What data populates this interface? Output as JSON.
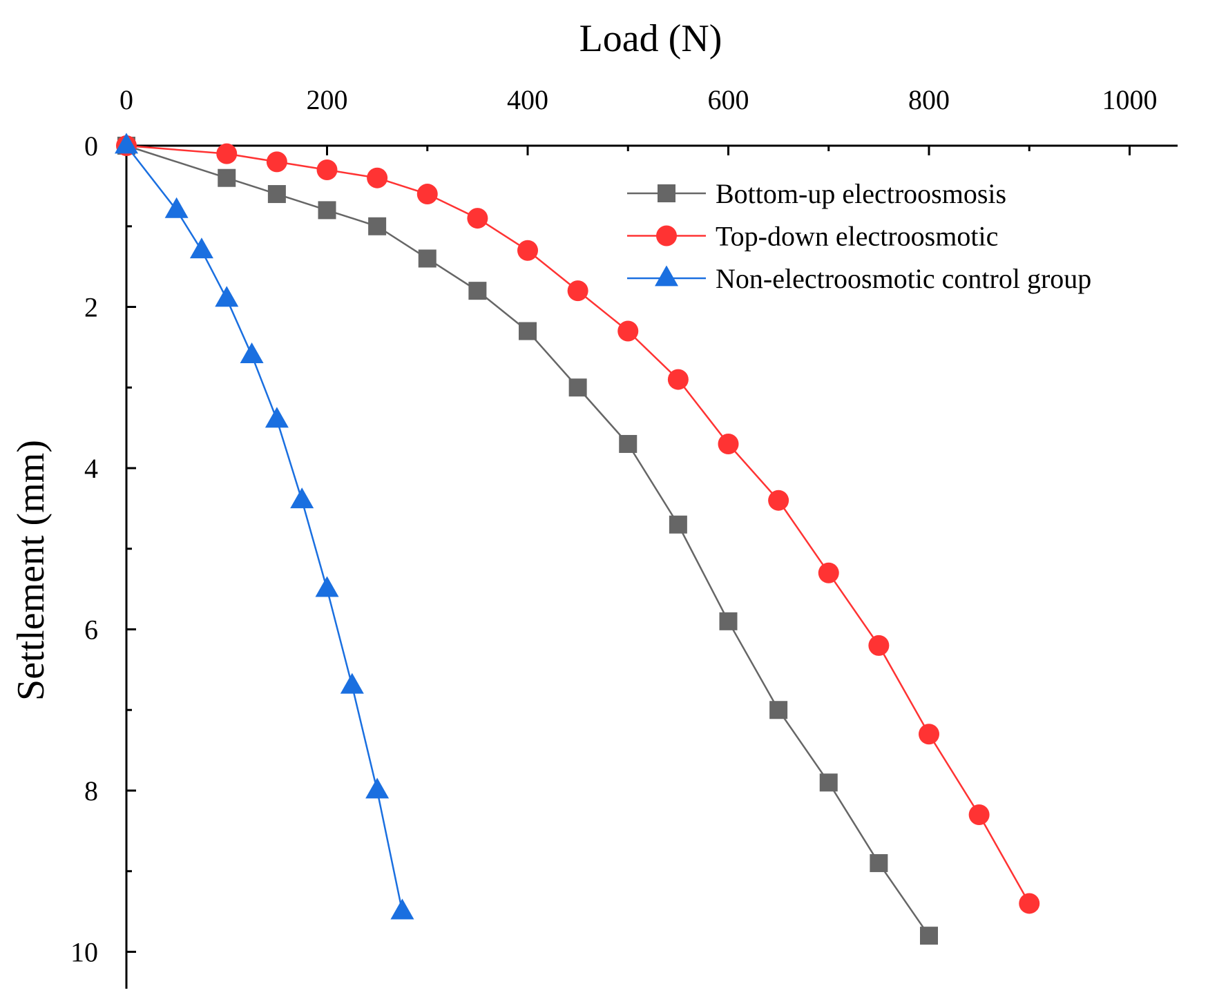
{
  "chart_data": {
    "type": "line",
    "title": "",
    "xlabel": "Load (N)",
    "ylabel": "Settlement (mm)",
    "x_axis_position": "top",
    "y_axis_inverted": true,
    "xlim": [
      0,
      1050
    ],
    "ylim": [
      0,
      10.5
    ],
    "xticks": [
      0,
      200,
      400,
      600,
      800,
      1000
    ],
    "xtick_labels": [
      "0",
      "200",
      "400",
      "600",
      "800",
      "1000"
    ],
    "yticks": [
      0,
      2,
      4,
      6,
      8,
      10
    ],
    "ytick_labels": [
      "0",
      "2",
      "4",
      "6",
      "8",
      "10"
    ],
    "grid": false,
    "legend_position": "top-right",
    "series": [
      {
        "name": "Bottom-up electroosmosis",
        "color": "#666666",
        "marker": "square",
        "x": [
          0,
          100,
          150,
          200,
          250,
          300,
          350,
          400,
          450,
          500,
          550,
          600,
          650,
          700,
          750,
          800
        ],
        "y": [
          0,
          0.4,
          0.6,
          0.8,
          1.0,
          1.4,
          1.8,
          2.3,
          3.0,
          3.7,
          4.7,
          5.9,
          7.0,
          7.9,
          8.9,
          9.8
        ]
      },
      {
        "name": "Top-down electroosmotic",
        "color": "#ff3333",
        "marker": "circle",
        "x": [
          0,
          100,
          150,
          200,
          250,
          300,
          350,
          400,
          450,
          500,
          550,
          600,
          650,
          700,
          750,
          800,
          850,
          900
        ],
        "y": [
          0,
          0.1,
          0.2,
          0.3,
          0.4,
          0.6,
          0.9,
          1.3,
          1.8,
          2.3,
          2.9,
          3.7,
          4.4,
          5.3,
          6.2,
          7.3,
          8.3,
          9.4
        ]
      },
      {
        "name": "Non-electroosmotic control group",
        "color": "#1a6fe0",
        "marker": "triangle",
        "x": [
          0,
          50,
          75,
          100,
          125,
          150,
          175,
          200,
          225,
          250,
          275
        ],
        "y": [
          0,
          0.8,
          1.3,
          1.9,
          2.6,
          3.4,
          4.4,
          5.5,
          6.7,
          8.0,
          9.5
        ]
      }
    ]
  }
}
